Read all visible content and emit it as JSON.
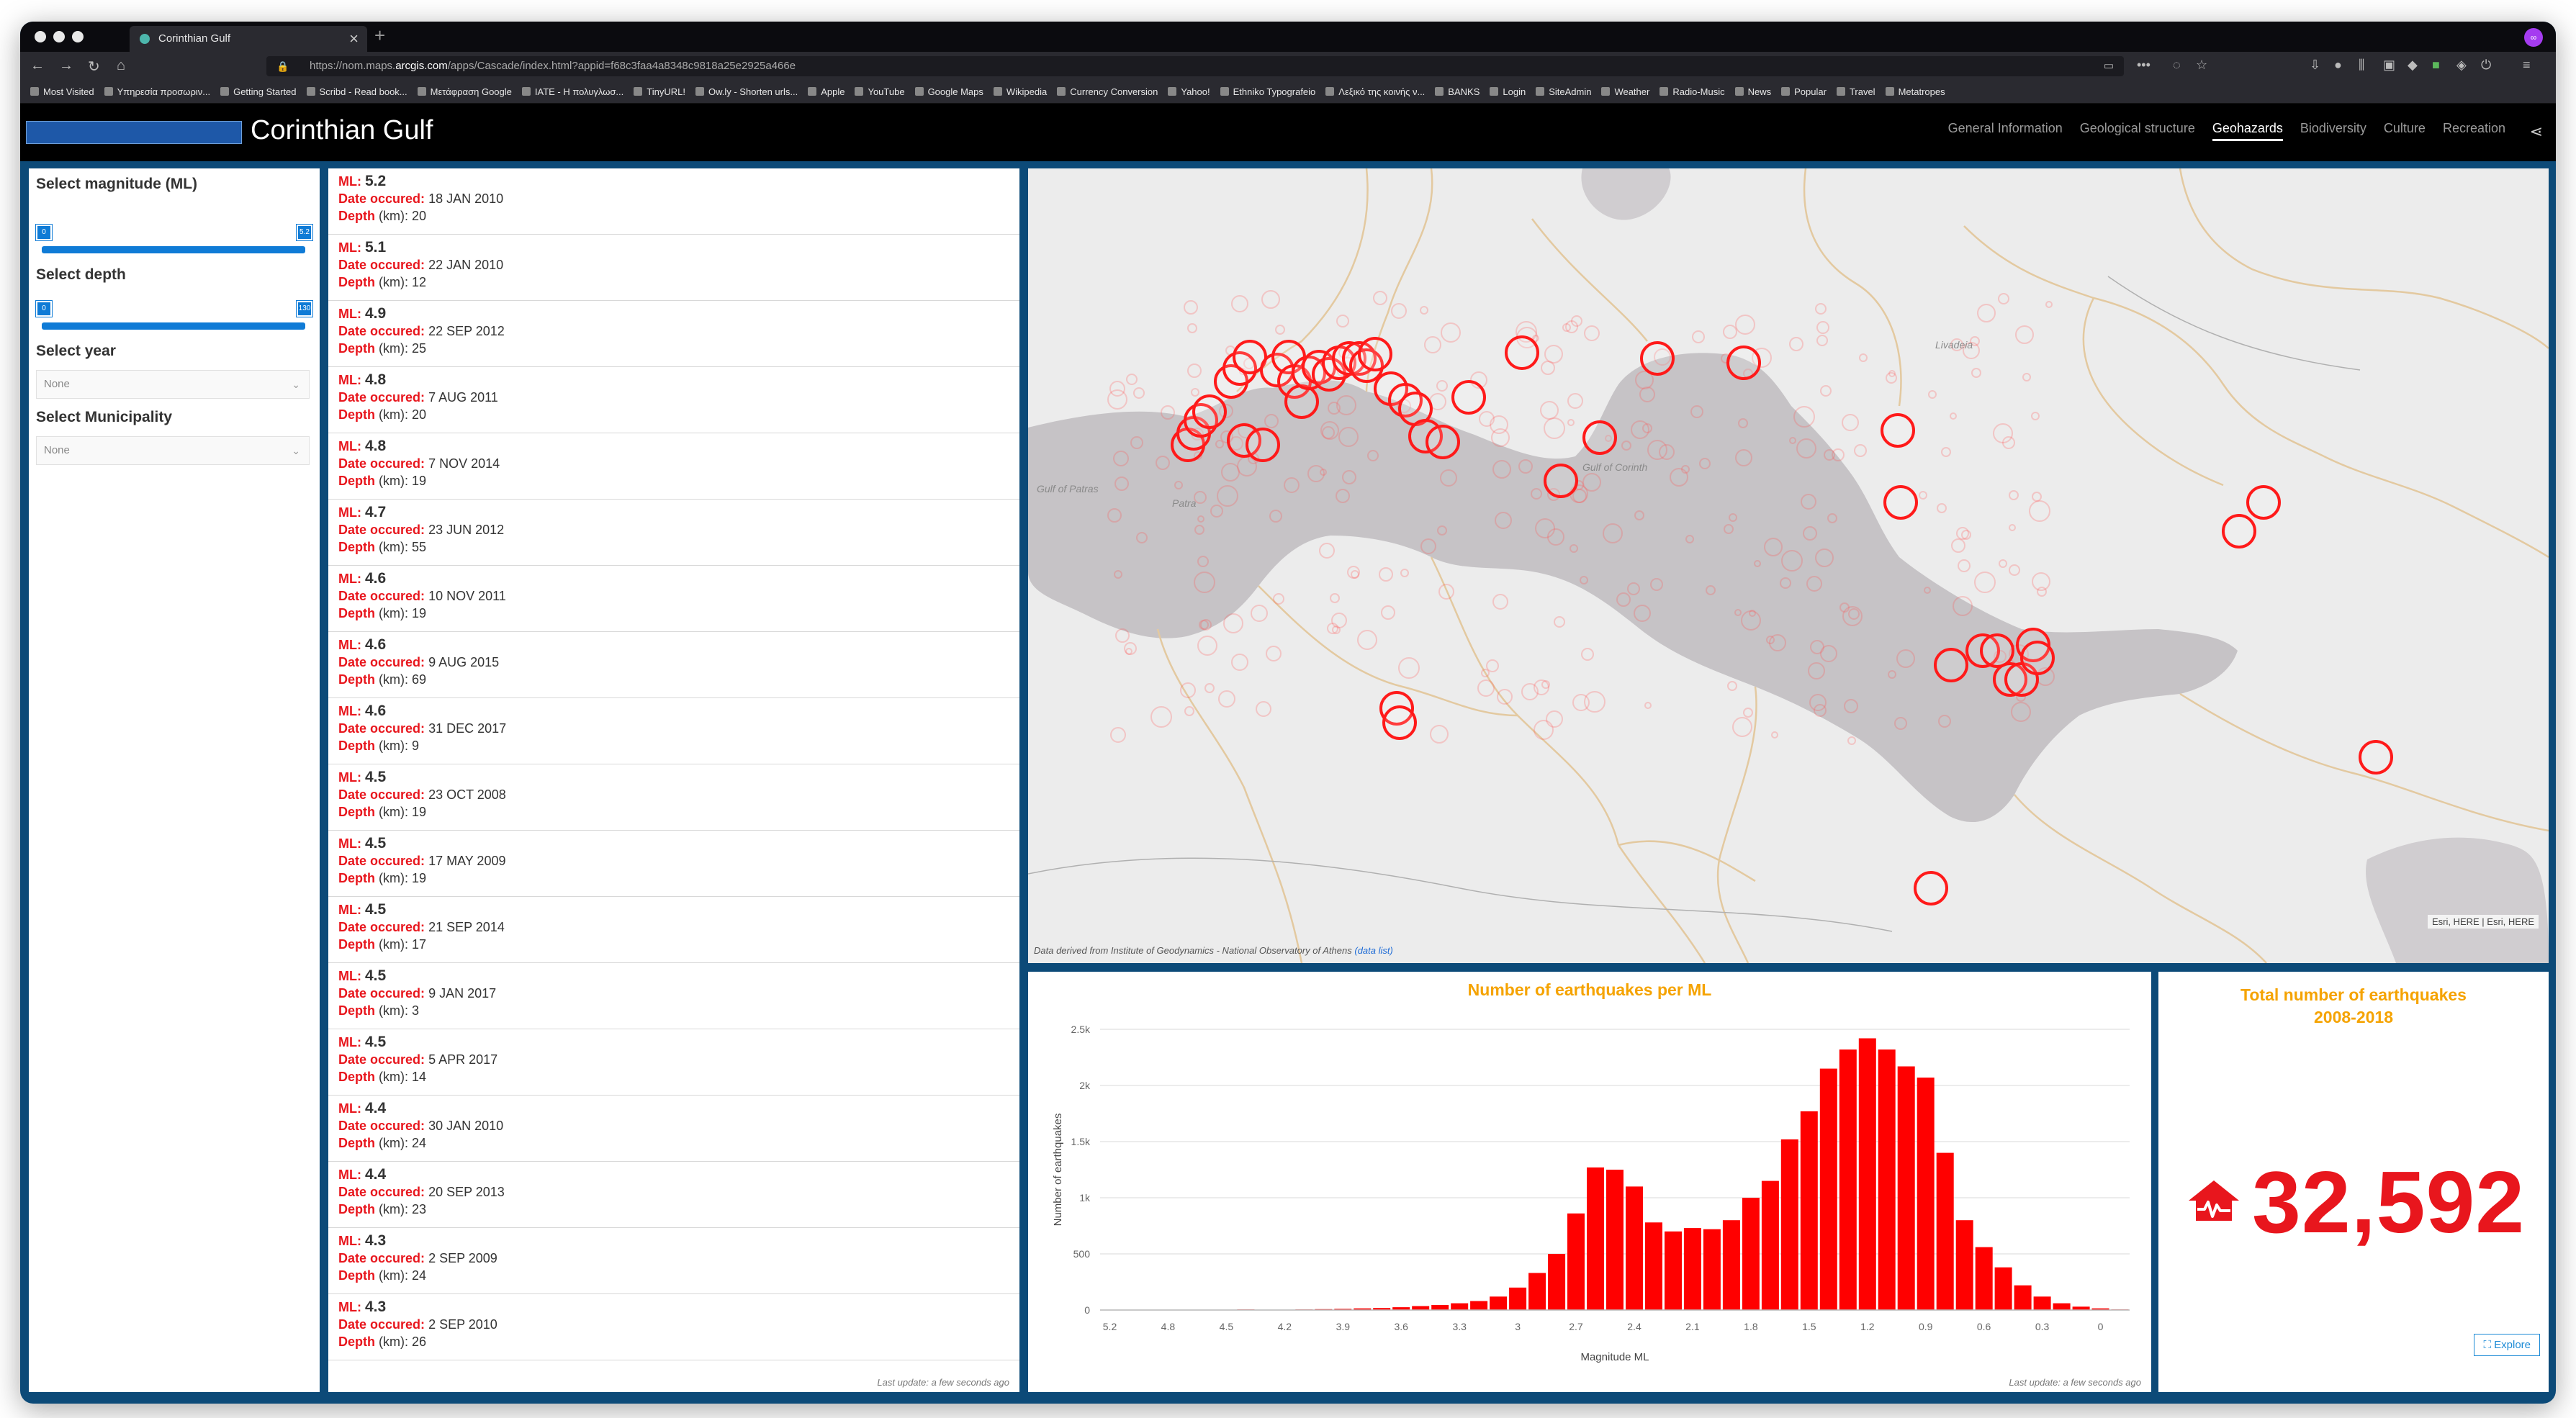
{
  "browser": {
    "tab_title": "Corinthian Gulf",
    "url_prefix": "https://nom.maps.",
    "url_domain": "arcgis.com",
    "url_rest": "/apps/Cascade/index.html?appid=f68c3faa4a8348c9818a25e2925a466e",
    "bookmarks": [
      "Most Visited",
      "Υπηρεσία προσωριν...",
      "Getting Started",
      "Scribd - Read book...",
      "Μετάφραση Google",
      "IATE - Η πολυγλωσ...",
      "TinyURL!",
      "Ow.ly - Shorten urls...",
      "Apple",
      "YouTube",
      "Google Maps",
      "Wikipedia",
      "Currency Conversion",
      "Yahoo!",
      "Ethniko Typografeio",
      "Λεξικό της κοινής ν...",
      "BANKS",
      "Login",
      "SiteAdmin",
      "Weather",
      "Radio-Music",
      "News",
      "Popular",
      "Travel",
      "Metatropes"
    ]
  },
  "app": {
    "title": "Corinthian Gulf",
    "logo_text": "",
    "nav": [
      {
        "label": "General Information",
        "active": false
      },
      {
        "label": "Geological structure",
        "active": false
      },
      {
        "label": "Geohazards",
        "active": true
      },
      {
        "label": "Biodiversity",
        "active": false
      },
      {
        "label": "Culture",
        "active": false
      },
      {
        "label": "Recreation",
        "active": false
      }
    ]
  },
  "filters": {
    "magnitude_label": "Select magnitude (ML)",
    "magnitude_min": "0",
    "magnitude_max": "5.2",
    "depth_label": "Select depth",
    "depth_min": "0",
    "depth_max": "130",
    "year_label": "Select year",
    "year_value": "None",
    "municipality_label": "Select Municipality",
    "municipality_value": "None"
  },
  "list": {
    "ml_key": "ML:",
    "date_key": "Date occured:",
    "depth_key": "Depth",
    "depth_unit": "(km):",
    "footer": "Last update: a few seconds ago",
    "items": [
      {
        "ml": "5.2",
        "date": "18 JAN 2010",
        "depth": "20"
      },
      {
        "ml": "5.1",
        "date": "22 JAN 2010",
        "depth": "12"
      },
      {
        "ml": "4.9",
        "date": "22 SEP 2012",
        "depth": "25"
      },
      {
        "ml": "4.8",
        "date": "7 AUG 2011",
        "depth": "20"
      },
      {
        "ml": "4.8",
        "date": "7 NOV 2014",
        "depth": "19"
      },
      {
        "ml": "4.7",
        "date": "23 JUN 2012",
        "depth": "55"
      },
      {
        "ml": "4.6",
        "date": "10 NOV 2011",
        "depth": "19"
      },
      {
        "ml": "4.6",
        "date": "9 AUG 2015",
        "depth": "69"
      },
      {
        "ml": "4.6",
        "date": "31 DEC 2017",
        "depth": "9"
      },
      {
        "ml": "4.5",
        "date": "23 OCT 2008",
        "depth": "19"
      },
      {
        "ml": "4.5",
        "date": "17 MAY 2009",
        "depth": "19"
      },
      {
        "ml": "4.5",
        "date": "21 SEP 2014",
        "depth": "17"
      },
      {
        "ml": "4.5",
        "date": "9 JAN 2017",
        "depth": "3"
      },
      {
        "ml": "4.5",
        "date": "5 APR 2017",
        "depth": "14"
      },
      {
        "ml": "4.4",
        "date": "30 JAN 2010",
        "depth": "24"
      },
      {
        "ml": "4.4",
        "date": "20 SEP 2013",
        "depth": "23"
      },
      {
        "ml": "4.3",
        "date": "2 SEP 2009",
        "depth": "24"
      },
      {
        "ml": "4.3",
        "date": "2 SEP 2010",
        "depth": "26"
      }
    ]
  },
  "map": {
    "labels": [
      "Gulf of Patras",
      "Patra",
      "Gulf of Corinth",
      "Livadeia"
    ],
    "attribution": "Esri, HERE | Esri, HERE",
    "source_text": "Data derived from Institute of Geodynamics - National Observatory of Athens",
    "source_link": "(data list)"
  },
  "chart": {
    "footer": "Last update: a few seconds ago"
  },
  "chart_data": {
    "type": "bar",
    "title": "Number of earthquakes per ML",
    "xlabel": "Magnitude ML",
    "ylabel": "Number of earthquakes",
    "ylim": [
      0,
      2500
    ],
    "y_ticks": [
      "0",
      "500",
      "1k",
      "1.5k",
      "2k",
      "2.5k"
    ],
    "x_ticks": [
      "5.2",
      "4.8",
      "4.5",
      "4.2",
      "3.9",
      "3.6",
      "3.3",
      "3",
      "2.7",
      "2.4",
      "2.1",
      "1.8",
      "1.5",
      "1.2",
      "0.9",
      "0.6",
      "0.3",
      "0"
    ],
    "bar_color": "#ff0000",
    "categories": [
      "5.2",
      "5.1",
      "5.0",
      "4.9",
      "4.8",
      "4.7",
      "4.6",
      "4.5",
      "4.4",
      "4.3",
      "4.2",
      "4.1",
      "4.0",
      "3.9",
      "3.8",
      "3.7",
      "3.6",
      "3.5",
      "3.4",
      "3.3",
      "3.2",
      "3.1",
      "3.0",
      "2.9",
      "2.8",
      "2.7",
      "2.6",
      "2.5",
      "2.4",
      "2.3",
      "2.2",
      "2.1",
      "2.0",
      "1.9",
      "1.8",
      "1.7",
      "1.6",
      "1.5",
      "1.4",
      "1.3",
      "1.2",
      "1.1",
      "1.0",
      "0.9",
      "0.8",
      "0.7",
      "0.6",
      "0.5",
      "0.4",
      "0.3",
      "0.2",
      "0.1",
      "0.0"
    ],
    "values": [
      1,
      1,
      0,
      1,
      2,
      1,
      3,
      5,
      2,
      2,
      5,
      8,
      10,
      15,
      18,
      25,
      35,
      45,
      60,
      80,
      120,
      200,
      330,
      500,
      860,
      1270,
      1250,
      1100,
      780,
      700,
      730,
      720,
      800,
      1000,
      1150,
      1520,
      1770,
      2150,
      2320,
      2420,
      2320,
      2170,
      2070,
      1400,
      800,
      560,
      380,
      220,
      120,
      60,
      30,
      15,
      5
    ],
    "grid": true
  },
  "total": {
    "title": "Total number of earthquakes",
    "subtitle": "2008-2018",
    "value": "32,592",
    "explore_label": "Explore"
  },
  "colors": {
    "accent_red": "#e8161d",
    "title_orange": "#f5a300",
    "frame_blue": "#0c4a78",
    "slider_blue": "#0f7bd6"
  }
}
